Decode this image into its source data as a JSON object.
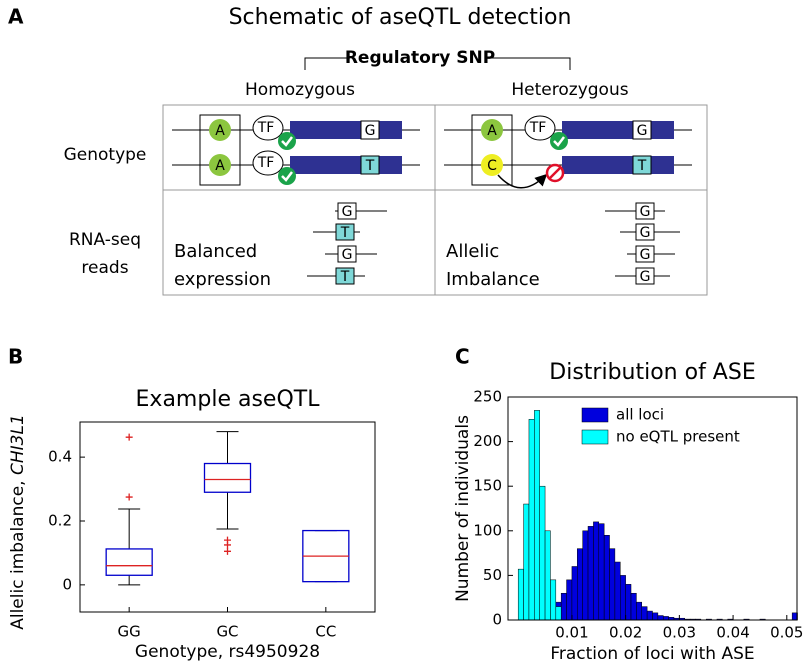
{
  "panel_labels": [
    "A",
    "B",
    "C"
  ],
  "schematic": {
    "title": "Schematic of aseQTL detection",
    "regulatory_snp": "Regulatory SNP",
    "homozygous": "Homozygous",
    "heterozygous": "Heterozygous",
    "genotype_label": "Genotype",
    "rnaseq_label": [
      "RNA-seq",
      "reads"
    ],
    "tf": "TF",
    "homo_snp": [
      "A",
      "A"
    ],
    "hetero_snp": [
      "A",
      "C"
    ],
    "homo_alleles": [
      "G",
      "T"
    ],
    "hetero_alleles": [
      "G",
      "T"
    ],
    "balanced": [
      "Balanced",
      "expression"
    ],
    "imbalance": [
      "Allelic",
      "Imbalance"
    ],
    "homo_reads": [
      "G",
      "T",
      "G",
      "T"
    ],
    "hetero_reads": [
      "G",
      "G",
      "G",
      "G"
    ]
  },
  "chart_data": [
    {
      "type": "box",
      "title": "Example aseQTL",
      "y_label": "Allelic imbalance, ",
      "y_label_gene": "CHI3L1",
      "x_label": "Genotype, rs4950928",
      "categories": [
        "GG",
        "GC",
        "CC"
      ],
      "boxes": [
        {
          "min": 0,
          "q1": 0.03,
          "median": 0.06,
          "q3": 0.1125,
          "max": 0.2375,
          "outliers": [
            0.275,
            0.4625
          ]
        },
        {
          "min": 0.175,
          "q1": 0.29,
          "median": 0.33,
          "q3": 0.38,
          "max": 0.48,
          "outliers": [
            0.14,
            0.125,
            0.105
          ]
        },
        {
          "min": 0.01,
          "q1": 0.01,
          "median": 0.09,
          "q3": 0.17,
          "max": 0.17,
          "outliers": []
        }
      ],
      "box_color": "#0000cc",
      "median_color": "#dd2222",
      "whisker_color": "#000000",
      "outlier_color": "#dd2222",
      "ylim": [
        -0.085,
        0.51
      ],
      "yticks": [
        0,
        0.2,
        0.4
      ]
    },
    {
      "type": "histogram",
      "title": "Distribution of ASE",
      "x_label": "Fraction of loci with ASE",
      "y_label": "Number of individuals",
      "bins": [
        0,
        0.001,
        0.002,
        0.003,
        0.004,
        0.005,
        0.006,
        0.007,
        0.008,
        0.009,
        0.01,
        0.011,
        0.012,
        0.013,
        0.014,
        0.015,
        0.016,
        0.017,
        0.018,
        0.019,
        0.02,
        0.021,
        0.022,
        0.023,
        0.024,
        0.025,
        0.026,
        0.027,
        0.028,
        0.029,
        0.03,
        0.031,
        0.032,
        0.033,
        0.034,
        0.035,
        0.036,
        0.037,
        0.038,
        0.039,
        0.04,
        0.041,
        0.042,
        0.043,
        0.044,
        0.045,
        0.046,
        0.047,
        0.048,
        0.049,
        0.05,
        0.051,
        0.052
      ],
      "series": [
        {
          "name": "all loci",
          "color": "#0000dd",
          "values": [
            0,
            0,
            1,
            2,
            3,
            5,
            10,
            20,
            30,
            45,
            60,
            80,
            100,
            105,
            110,
            108,
            95,
            80,
            65,
            50,
            40,
            30,
            20,
            15,
            10,
            8,
            5,
            4,
            3,
            2,
            2,
            1,
            1,
            1,
            0,
            1,
            0,
            1,
            0,
            1,
            0,
            0,
            1,
            0,
            0,
            1,
            0,
            0,
            0,
            0,
            0,
            8
          ]
        },
        {
          "name": "no eQTL present",
          "color": "#00ffff",
          "values": [
            57,
            130,
            225,
            235,
            150,
            100,
            45,
            15,
            0,
            0,
            0,
            0,
            0,
            0,
            0,
            0,
            0,
            0,
            0,
            0,
            0,
            0,
            0,
            0,
            0,
            0,
            0,
            0,
            0,
            0,
            0,
            0,
            0,
            0,
            0,
            0,
            0,
            0,
            0,
            0,
            0,
            0,
            0,
            0,
            0,
            0,
            0,
            0,
            0,
            0,
            0,
            0
          ]
        }
      ],
      "xlim": [
        -0.0019,
        0.0519
      ],
      "xticks": [
        0.01,
        0.02,
        0.03,
        0.04,
        0.05
      ],
      "ylim": [
        0,
        250
      ],
      "yticks": [
        0,
        50,
        100,
        150,
        200,
        250
      ],
      "legend": "upper right"
    }
  ]
}
